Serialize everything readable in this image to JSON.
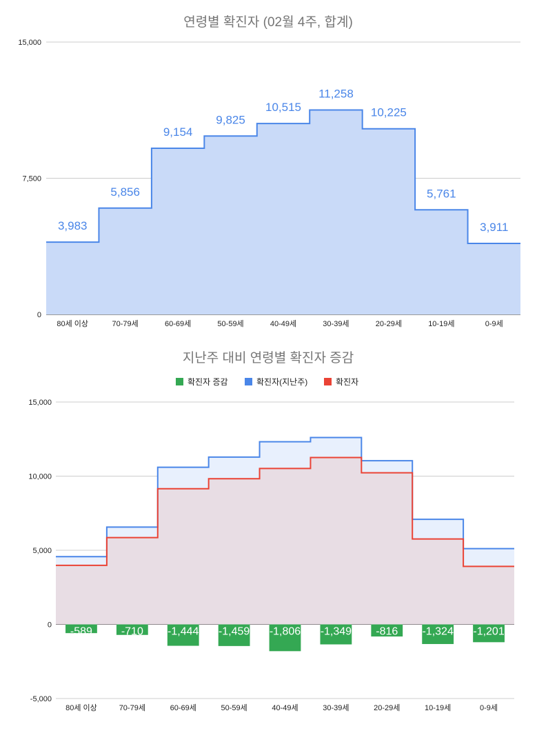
{
  "chart_data": [
    {
      "type": "area",
      "title": "연령별 확진자 (02월 4주, 합계)",
      "categories": [
        "80세 이상",
        "70-79세",
        "60-69세",
        "50-59세",
        "40-49세",
        "30-39세",
        "20-29세",
        "10-19세",
        "0-9세"
      ],
      "y_ticks": [
        "0",
        "7,500",
        "15,000"
      ],
      "ylim": [
        0,
        15000
      ],
      "series": [
        {
          "values": [
            3983,
            5856,
            9154,
            9825,
            10515,
            11258,
            10225,
            5761,
            3911
          ],
          "labels": [
            "3,983",
            "5,856",
            "9,154",
            "9,825",
            "10,515",
            "11,258",
            "10,225",
            "5,761",
            "3,911"
          ],
          "color": "#4a86e8",
          "fill": "#c9daf8"
        }
      ],
      "grid": true
    },
    {
      "type": "area",
      "title": "지난주 대비 연령별 확진자 증감",
      "categories": [
        "80세 이상",
        "70-79세",
        "60-69세",
        "50-59세",
        "40-49세",
        "30-39세",
        "20-29세",
        "10-19세",
        "0-9세"
      ],
      "y_ticks": [
        "-5,000",
        "0",
        "5,000",
        "10,000",
        "15,000"
      ],
      "ylim": [
        -5000,
        15000
      ],
      "legend_position": "top",
      "series": [
        {
          "name": "확진자 증감",
          "type": "bar",
          "color": "#34a853",
          "values": [
            -589,
            -710,
            -1444,
            -1459,
            -1806,
            -1349,
            -816,
            -1324,
            -1201
          ],
          "labels": [
            "-589",
            "-710",
            "-1,444",
            "-1,459",
            "-1,806",
            "-1,349",
            "-816",
            "-1,324",
            "-1,201"
          ]
        },
        {
          "name": "확진자(지난주)",
          "type": "stepped-area",
          "color": "#4a86e8",
          "fill": "#e8f0fd",
          "values": [
            4572,
            6566,
            10598,
            11284,
            12321,
            12607,
            11041,
            7085,
            5112
          ]
        },
        {
          "name": "확진자",
          "type": "stepped-area",
          "color": "#ea4335",
          "fill": "#e8dde4",
          "values": [
            3983,
            5856,
            9154,
            9825,
            10515,
            11258,
            10225,
            5761,
            3911
          ]
        }
      ],
      "grid": true
    }
  ]
}
